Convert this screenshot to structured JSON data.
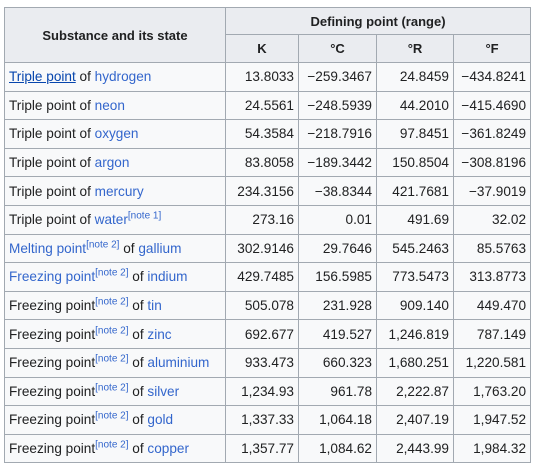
{
  "header": {
    "substance_label": "Substance and its state",
    "defining_point_label": "Defining point (range)",
    "units": [
      "K",
      "°C",
      "°R",
      "°F"
    ]
  },
  "rows": [
    {
      "prefix": "",
      "link": "Triple point",
      "note": "",
      "mid": " of ",
      "mid_link": "",
      "substance": "hydrogen",
      "values": [
        "13.8033",
        "−259.3467",
        "24.8459",
        "−434.8241"
      ]
    },
    {
      "prefix": "Triple point of ",
      "link": "",
      "note": "",
      "mid": "",
      "mid_link": "",
      "substance": "neon",
      "values": [
        "24.5561",
        "−248.5939",
        "44.2010",
        "−415.4690"
      ]
    },
    {
      "prefix": "Triple point of ",
      "link": "",
      "note": "",
      "mid": "",
      "mid_link": "",
      "substance": "oxygen",
      "values": [
        "54.3584",
        "−218.7916",
        "97.8451",
        "−361.8249"
      ]
    },
    {
      "prefix": "Triple point of ",
      "link": "",
      "note": "",
      "mid": "",
      "mid_link": "",
      "substance": "argon",
      "values": [
        "83.8058",
        "−189.3442",
        "150.8504",
        "−308.8196"
      ]
    },
    {
      "prefix": "Triple point of ",
      "link": "",
      "note": "",
      "mid": "",
      "mid_link": "",
      "substance": "mercury",
      "values": [
        "234.3156",
        "−38.8344",
        "421.7681",
        "−37.9019"
      ]
    },
    {
      "prefix": "Triple point of ",
      "link": "",
      "note": "",
      "mid": "",
      "mid_link": "",
      "substance": "water",
      "note_after": "[note 1]",
      "values": [
        "273.16",
        "0.01",
        "491.69",
        "32.02"
      ]
    },
    {
      "prefix": "",
      "link": "Melting point",
      "note": "[note 2]",
      "mid": " of ",
      "mid_link": "",
      "substance": "gallium",
      "values": [
        "302.9146",
        "29.7646",
        "545.2463",
        "85.5763"
      ]
    },
    {
      "prefix": "",
      "link": "Freezing point",
      "note": "[note 2]",
      "mid": " of ",
      "mid_link": "",
      "substance": "indium",
      "values": [
        "429.7485",
        "156.5985",
        "773.5473",
        "313.8773"
      ]
    },
    {
      "prefix": "Freezing point",
      "link": "",
      "note": "[note 2]",
      "mid": " of ",
      "mid_link": "",
      "substance": "tin",
      "values": [
        "505.078",
        "231.928",
        "909.140",
        "449.470"
      ]
    },
    {
      "prefix": "Freezing point",
      "link": "",
      "note": "[note 2]",
      "mid": " of ",
      "mid_link": "",
      "substance": "zinc",
      "values": [
        "692.677",
        "419.527",
        "1,246.819",
        "787.149"
      ]
    },
    {
      "prefix": "Freezing point",
      "link": "",
      "note": "[note 2]",
      "mid": " of ",
      "mid_link": "",
      "substance": "aluminium",
      "values": [
        "933.473",
        "660.323",
        "1,680.251",
        "1,220.581"
      ]
    },
    {
      "prefix": "Freezing point",
      "link": "",
      "note": "[note 2]",
      "mid": " of ",
      "mid_link": "",
      "substance": "silver",
      "values": [
        "1,234.93",
        "961.78",
        "2,222.87",
        "1,763.20"
      ]
    },
    {
      "prefix": "Freezing point",
      "link": "",
      "note": "[note 2]",
      "mid": " of ",
      "mid_link": "",
      "substance": "gold",
      "values": [
        "1,337.33",
        "1,064.18",
        "2,407.19",
        "1,947.52"
      ]
    },
    {
      "prefix": "Freezing point",
      "link": "",
      "note": "[note 2]",
      "mid": " of ",
      "mid_link": "",
      "substance": "copper",
      "values": [
        "1,357.77",
        "1,084.62",
        "2,443.99",
        "1,984.32"
      ]
    }
  ],
  "colors": {
    "link": "#3366cc",
    "header_bg": "#eaecf0",
    "cell_bg": "#f8f9fa",
    "border": "#a2a9b1",
    "text": "#202122"
  }
}
